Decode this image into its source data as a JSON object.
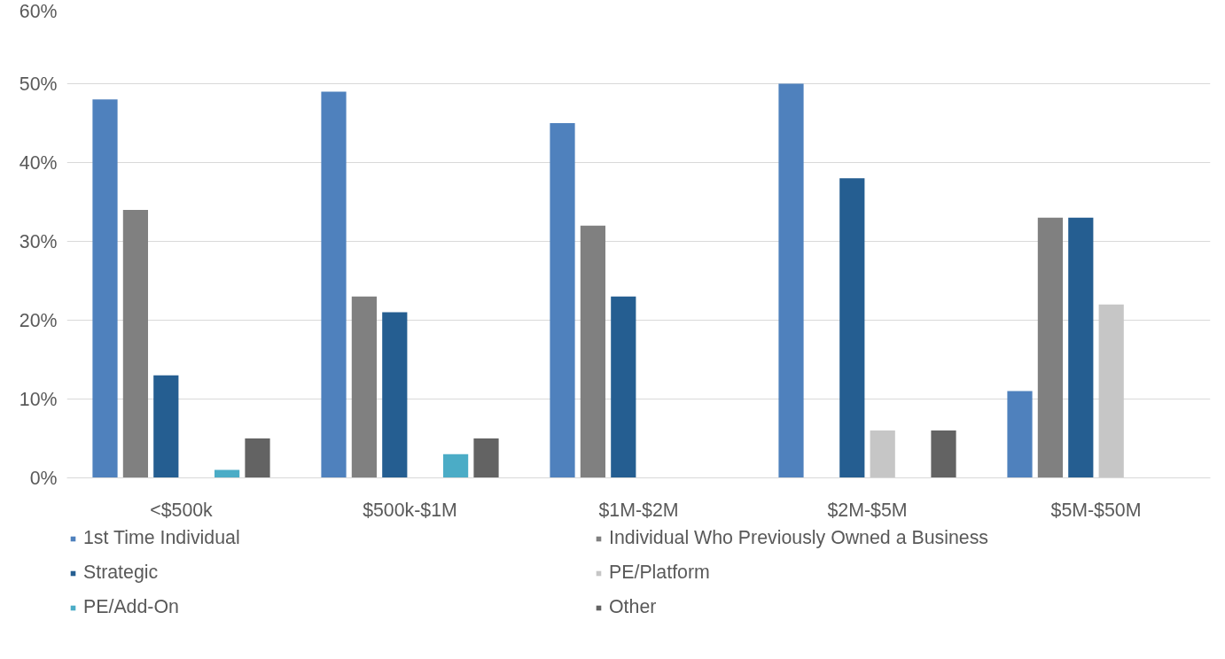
{
  "chart_data": {
    "type": "bar",
    "categories": [
      "<$500k",
      "$500k-$1M",
      "$1M-$2M",
      "$2M-$5M",
      "$5M-$50M"
    ],
    "series": [
      {
        "name": "1st Time Individual",
        "color": "#4f81bd",
        "values": [
          48,
          49,
          45,
          50,
          11
        ]
      },
      {
        "name": "Individual Who Previously Owned a Business",
        "color": "#808080",
        "values": [
          34,
          23,
          32,
          0,
          33
        ]
      },
      {
        "name": "Strategic",
        "color": "#255e91",
        "values": [
          13,
          21,
          23,
          38,
          33
        ]
      },
      {
        "name": "PE/Platform",
        "color": "#c6c6c6",
        "values": [
          0,
          0,
          0,
          6,
          22
        ]
      },
      {
        "name": "PE/Add-On",
        "color": "#4bacc6",
        "values": [
          1,
          3,
          0,
          0,
          0
        ]
      },
      {
        "name": "Other",
        "color": "#636363",
        "values": [
          5,
          5,
          0,
          6,
          0
        ]
      }
    ],
    "ylim": [
      0,
      60
    ],
    "yticks": [
      {
        "value": 0,
        "label": "0%"
      },
      {
        "value": 10,
        "label": "10%"
      },
      {
        "value": 20,
        "label": "20%"
      },
      {
        "value": 30,
        "label": "30%"
      },
      {
        "value": 40,
        "label": "40%"
      },
      {
        "value": 50,
        "label": "50%"
      },
      {
        "value": 60,
        "label": "60%"
      }
    ],
    "grid": "y",
    "legend": "bottom"
  }
}
